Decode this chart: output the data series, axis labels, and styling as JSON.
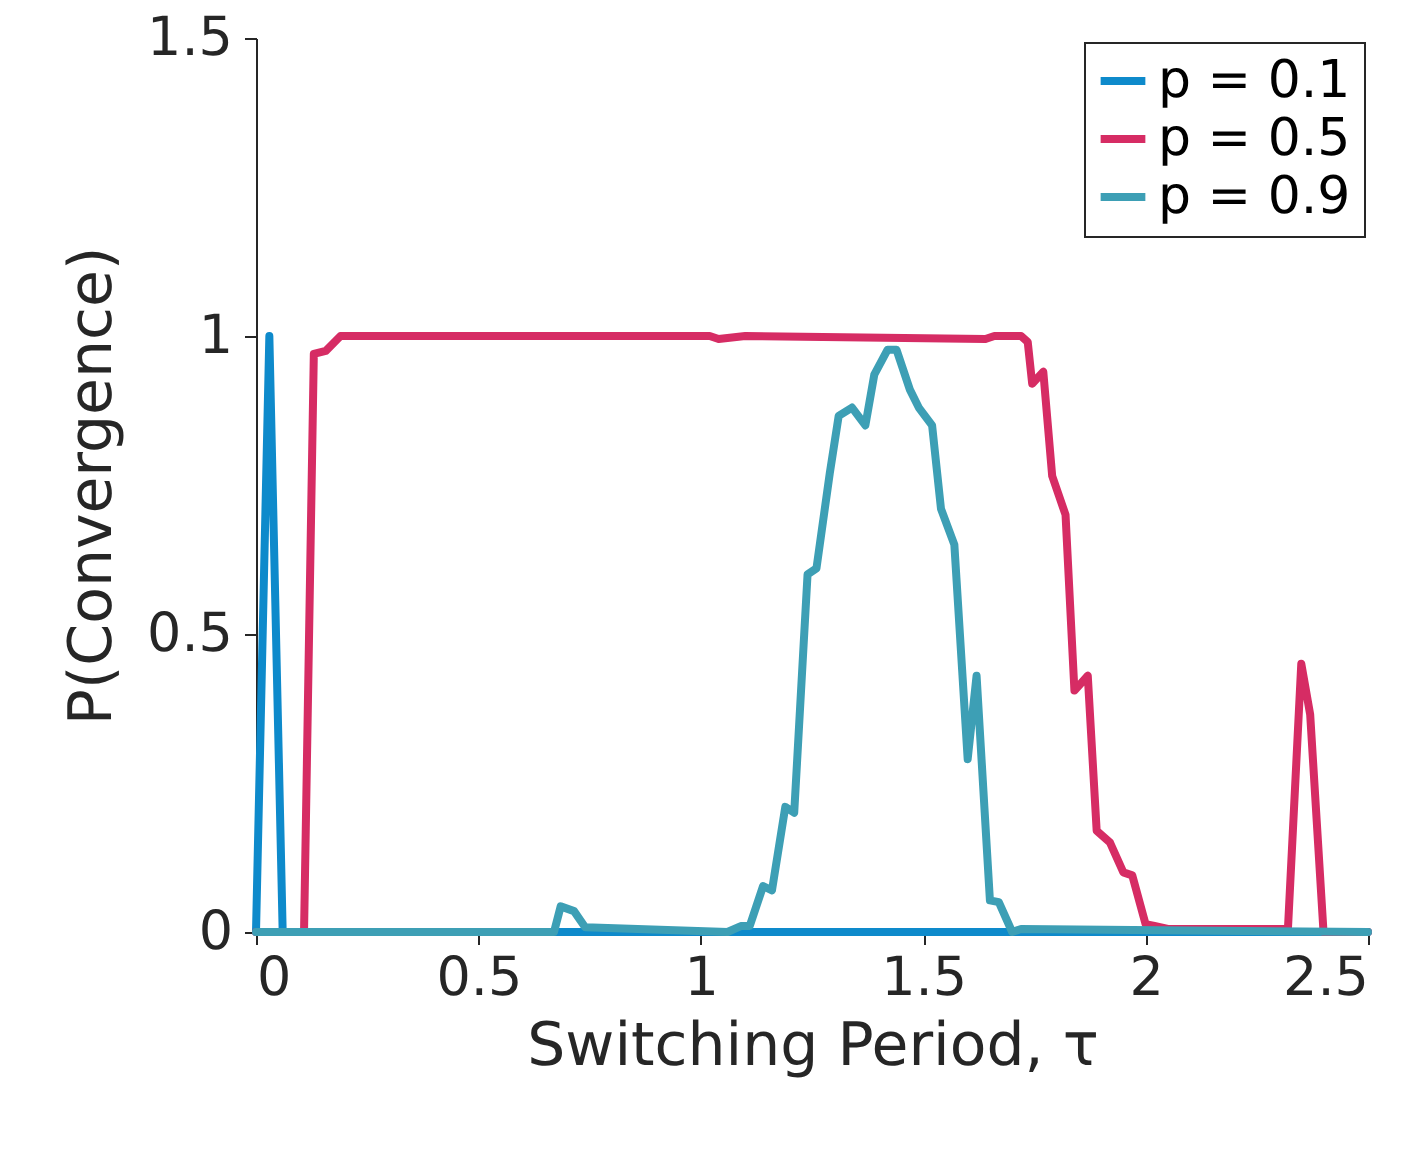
{
  "chart_data": {
    "type": "line",
    "xlabel": "Switching Period, τ",
    "ylabel": "P(Convergence)",
    "xlim": [
      0,
      2.5
    ],
    "ylim": [
      0,
      1.5
    ],
    "xticks": [
      0,
      0.5,
      1,
      1.5,
      2,
      2.5
    ],
    "yticks": [
      0,
      0.5,
      1,
      1.5
    ],
    "legend": "top right",
    "grid": false,
    "series": [
      {
        "name": "p = 0.1",
        "color": "#0e8acb",
        "x": [
          0,
          0.03,
          0.06,
          2.5
        ],
        "values": [
          0,
          1,
          0,
          0
        ]
      },
      {
        "name": "p = 0.5",
        "color": "#d62c64",
        "x": [
          0,
          0.108,
          0.13,
          0.157,
          0.19,
          1.02,
          1.04,
          1.1,
          1.64,
          1.66,
          1.72,
          1.735,
          1.745,
          1.77,
          1.79,
          1.82,
          1.84,
          1.87,
          1.89,
          1.92,
          1.95,
          1.97,
          2.0,
          2.02,
          2.05,
          2.3,
          2.32,
          2.35,
          2.37,
          2.4,
          2.5
        ],
        "values": [
          0,
          0,
          0.97,
          0.975,
          1,
          1,
          0.995,
          1,
          0.995,
          1,
          1,
          0.99,
          0.92,
          0.94,
          0.765,
          0.7,
          0.405,
          0.43,
          0.17,
          0.15,
          0.1,
          0.095,
          0.013,
          0.01,
          0.005,
          0.005,
          0.005,
          0.45,
          0.365,
          0,
          0
        ]
      },
      {
        "name": "p = 0.9",
        "color": "#3d9fb5",
        "x": [
          0,
          0.67,
          0.685,
          0.715,
          0.74,
          1.06,
          1.09,
          1.11,
          1.14,
          1.16,
          1.19,
          1.21,
          1.24,
          1.26,
          1.29,
          1.31,
          1.34,
          1.37,
          1.39,
          1.42,
          1.44,
          1.47,
          1.49,
          1.52,
          1.54,
          1.57,
          1.6,
          1.62,
          1.65,
          1.67,
          1.7,
          1.72,
          2.5
        ],
        "values": [
          0,
          0,
          0.043,
          0.035,
          0.008,
          0,
          0.01,
          0.01,
          0.077,
          0.07,
          0.21,
          0.2,
          0.6,
          0.61,
          0.77,
          0.866,
          0.88,
          0.85,
          0.935,
          0.977,
          0.977,
          0.91,
          0.88,
          0.85,
          0.71,
          0.65,
          0.29,
          0.43,
          0.053,
          0.05,
          0,
          0.005,
          0
        ]
      }
    ]
  }
}
